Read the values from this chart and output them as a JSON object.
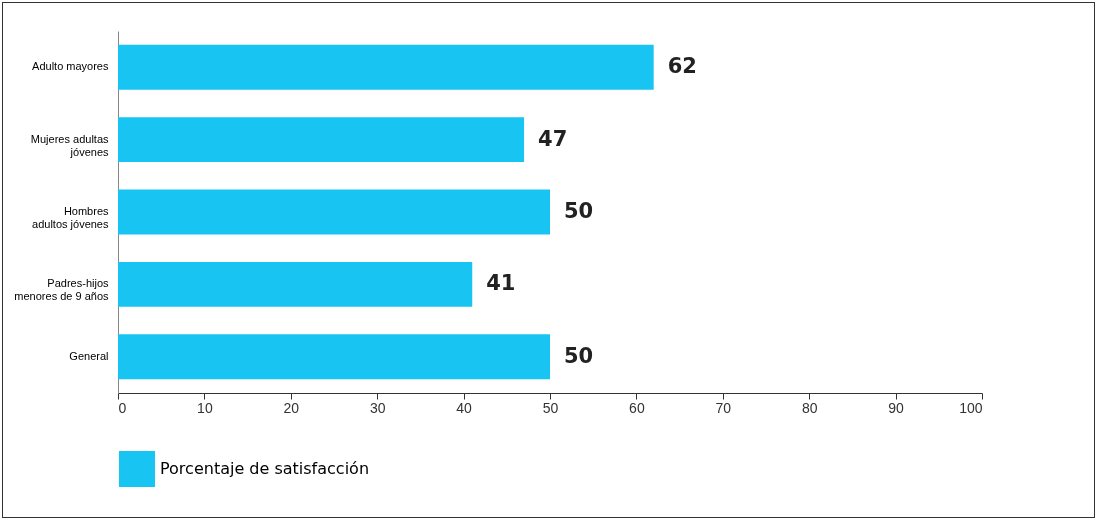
{
  "chart_data": {
    "type": "bar",
    "orientation": "horizontal",
    "categories": [
      "Adulto mayores",
      "Mujeres adultas\njóvenes",
      "Hombres\nadultos jóvenes",
      "Padres-hijos\nmenores de 9 años",
      "General"
    ],
    "series": [
      {
        "name": "Porcentaje de satisfacción",
        "color": "#17c4f2",
        "values": [
          62,
          47,
          50,
          41,
          50
        ]
      }
    ],
    "xlim": [
      0,
      100
    ],
    "xticks": [
      0,
      10,
      20,
      30,
      40,
      50,
      60,
      70,
      80,
      90,
      100
    ],
    "data_labels": true,
    "grid": false,
    "legend": "bottom"
  }
}
